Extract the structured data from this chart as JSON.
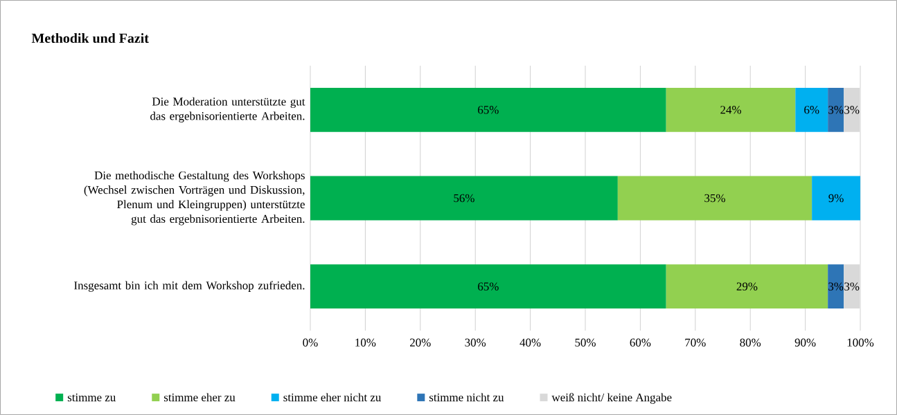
{
  "chart_data": {
    "type": "bar",
    "orientation": "horizontal",
    "stacked": true,
    "title": "Methodik und Fazit",
    "categories": [
      "Die Moderation unterstützte gut das ergebnisorientierte Arbeiten.",
      "Die methodische Gestaltung des Workshops (Wechsel zwischen Vorträgen und Diskussion, Plenum und Kleingruppen) unterstützte gut das ergebnisorientierte Arbeiten.",
      "Insgesamt bin ich mit dem Workshop zufrieden."
    ],
    "series": [
      {
        "name": "stimme zu",
        "color": "#00b050",
        "values": [
          64.7,
          55.9,
          64.7
        ],
        "value_labels": [
          "65%",
          "56%",
          "65%"
        ]
      },
      {
        "name": "stimme eher zu",
        "color": "#92d050",
        "values": [
          23.5,
          35.3,
          29.4
        ],
        "value_labels": [
          "24%",
          "35%",
          "29%"
        ]
      },
      {
        "name": "stimme eher nicht zu",
        "color": "#00b0f0",
        "values": [
          5.9,
          8.8,
          null
        ],
        "value_labels": [
          "6%",
          "9%",
          null
        ]
      },
      {
        "name": "stimme nicht zu",
        "color": "#2e75b6",
        "values": [
          2.9,
          null,
          2.9
        ],
        "value_labels": [
          "3%",
          null,
          "3%"
        ]
      },
      {
        "name": "weiß nicht/ keine Angabe",
        "color": "#d9d9d9",
        "values": [
          2.9,
          null,
          2.9
        ],
        "value_labels": [
          "3%",
          null,
          "3%"
        ]
      }
    ],
    "xlim": [
      0,
      100
    ],
    "xticks": [
      {
        "value": 0,
        "label": "0%"
      },
      {
        "value": 10,
        "label": "10%"
      },
      {
        "value": 20,
        "label": "20%"
      },
      {
        "value": 30,
        "label": "30%"
      },
      {
        "value": 40,
        "label": "40%"
      },
      {
        "value": 50,
        "label": "50%"
      },
      {
        "value": 60,
        "label": "60%"
      },
      {
        "value": 70,
        "label": "70%"
      },
      {
        "value": 80,
        "label": "80%"
      },
      {
        "value": 90,
        "label": "90%"
      },
      {
        "value": 100,
        "label": "100%"
      }
    ],
    "grid": "x",
    "legend": "bottom"
  }
}
